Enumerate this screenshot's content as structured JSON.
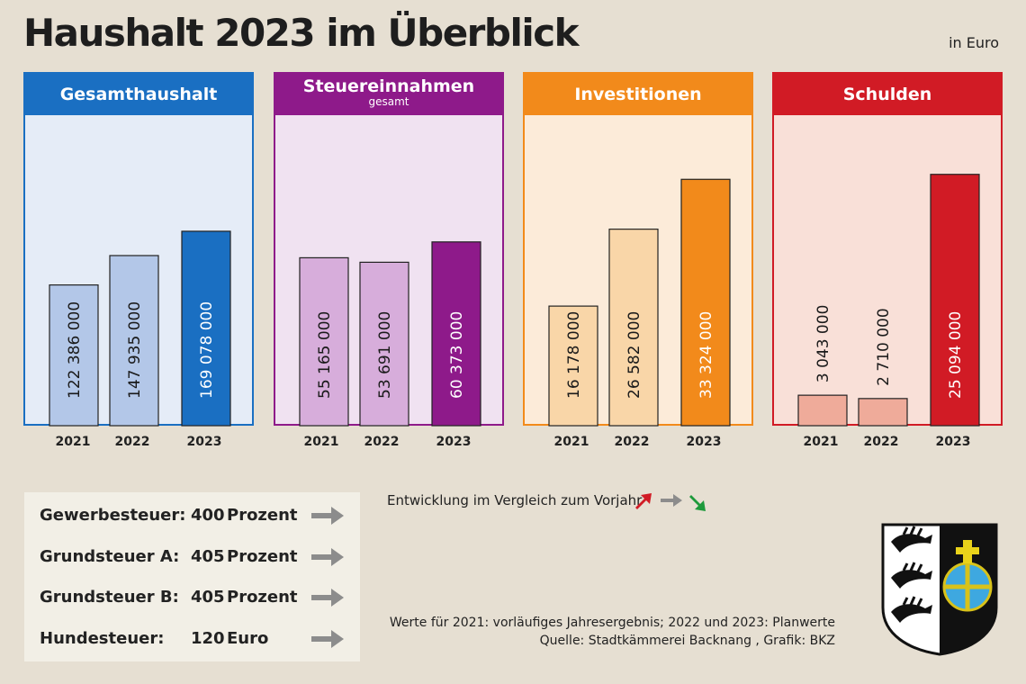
{
  "title": "Haushalt 2023 im Überblick",
  "unit_label": "in Euro",
  "years": [
    "2021",
    "2022",
    "2023"
  ],
  "chart_data": [
    {
      "type": "bar",
      "title": "Gesamthaushalt",
      "subtitle": "",
      "categories": [
        "2021",
        "2022",
        "2023"
      ],
      "values": [
        122386000,
        147935000,
        169078000
      ],
      "value_labels": [
        "122 386 000",
        "147 935 000",
        "169 078 000"
      ],
      "colors": {
        "header": "#1a6fc2",
        "panel_bg": "#e5ecf7",
        "bar_light": "#b3c7e8",
        "bar_current": "#1a6fc2"
      }
    },
    {
      "type": "bar",
      "title": "Steuereinnahmen",
      "subtitle": "gesamt",
      "categories": [
        "2021",
        "2022",
        "2023"
      ],
      "values": [
        55165000,
        53691000,
        60373000
      ],
      "value_labels": [
        "55 165 000",
        "53 691 000",
        "60 373 000"
      ],
      "colors": {
        "header": "#8e1a8a",
        "panel_bg": "#f0e2f1",
        "bar_light": "#d7addb",
        "bar_current": "#8e1a8a"
      }
    },
    {
      "type": "bar",
      "title": "Investitionen",
      "subtitle": "",
      "categories": [
        "2021",
        "2022",
        "2023"
      ],
      "values": [
        16178000,
        26582000,
        33324000
      ],
      "value_labels": [
        "16 178 000",
        "26 582 000",
        "33 324 000"
      ],
      "colors": {
        "header": "#f28a1b",
        "panel_bg": "#fcebd9",
        "bar_light": "#f9d6a8",
        "bar_current": "#f28a1b"
      }
    },
    {
      "type": "bar",
      "title": "Schulden",
      "subtitle": "",
      "categories": [
        "2021",
        "2022",
        "2023"
      ],
      "values": [
        3043000,
        2710000,
        25094000
      ],
      "value_labels": [
        "3 043 000",
        "2 710 000",
        "25 094 000"
      ],
      "colors": {
        "header": "#d11b25",
        "panel_bg": "#f9e0d8",
        "bar_light": "#efab9a",
        "bar_current": "#d11b25"
      }
    }
  ],
  "taxes": [
    {
      "name": "Gewerbesteuer:",
      "value": "400",
      "unit": "Prozent",
      "trend": "gleich"
    },
    {
      "name": "Grundsteuer A:",
      "value": "405",
      "unit": "Prozent",
      "trend": "gleich"
    },
    {
      "name": "Grundsteuer B:",
      "value": "405",
      "unit": "Prozent",
      "trend": "gleich"
    },
    {
      "name": "Hundesteuer:",
      "value": "120",
      "unit": "Euro",
      "trend": "gleich"
    }
  ],
  "legend": {
    "text": "Entwicklung im Vergleich zum Vorjahr",
    "arrow_colors": {
      "up": "#d11b25",
      "same": "#8c8c8c",
      "down": "#1e9a3c"
    }
  },
  "footnotes": {
    "line1": "Werte für 2021: vorläufiges Jahresergebnis; 2022 und 2023: Planwerte",
    "line2": "Quelle: Stadtkämmerei Backnang , Grafik: BKZ"
  }
}
